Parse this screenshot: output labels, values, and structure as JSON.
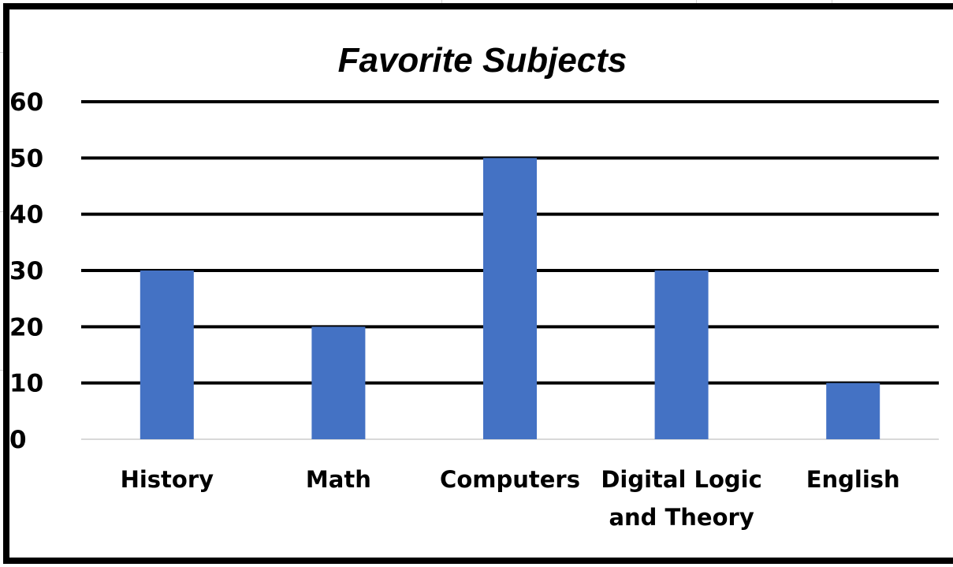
{
  "chart_data": {
    "type": "bar",
    "title": "Favorite Subjects",
    "categories": [
      [
        "History"
      ],
      [
        "Math"
      ],
      [
        "Computers"
      ],
      [
        "Digital Logic",
        "and Theory"
      ],
      [
        "English"
      ]
    ],
    "values": [
      30,
      20,
      50,
      30,
      10
    ],
    "ylim": [
      0,
      60
    ],
    "yticks": [
      0,
      10,
      20,
      30,
      40,
      50,
      60
    ],
    "xlabel": "",
    "ylabel": "",
    "grid": true,
    "legend": "none",
    "bar_color": "#4472C4",
    "gridline_color": "#000000",
    "baseline_color": "#d9d9d9"
  }
}
